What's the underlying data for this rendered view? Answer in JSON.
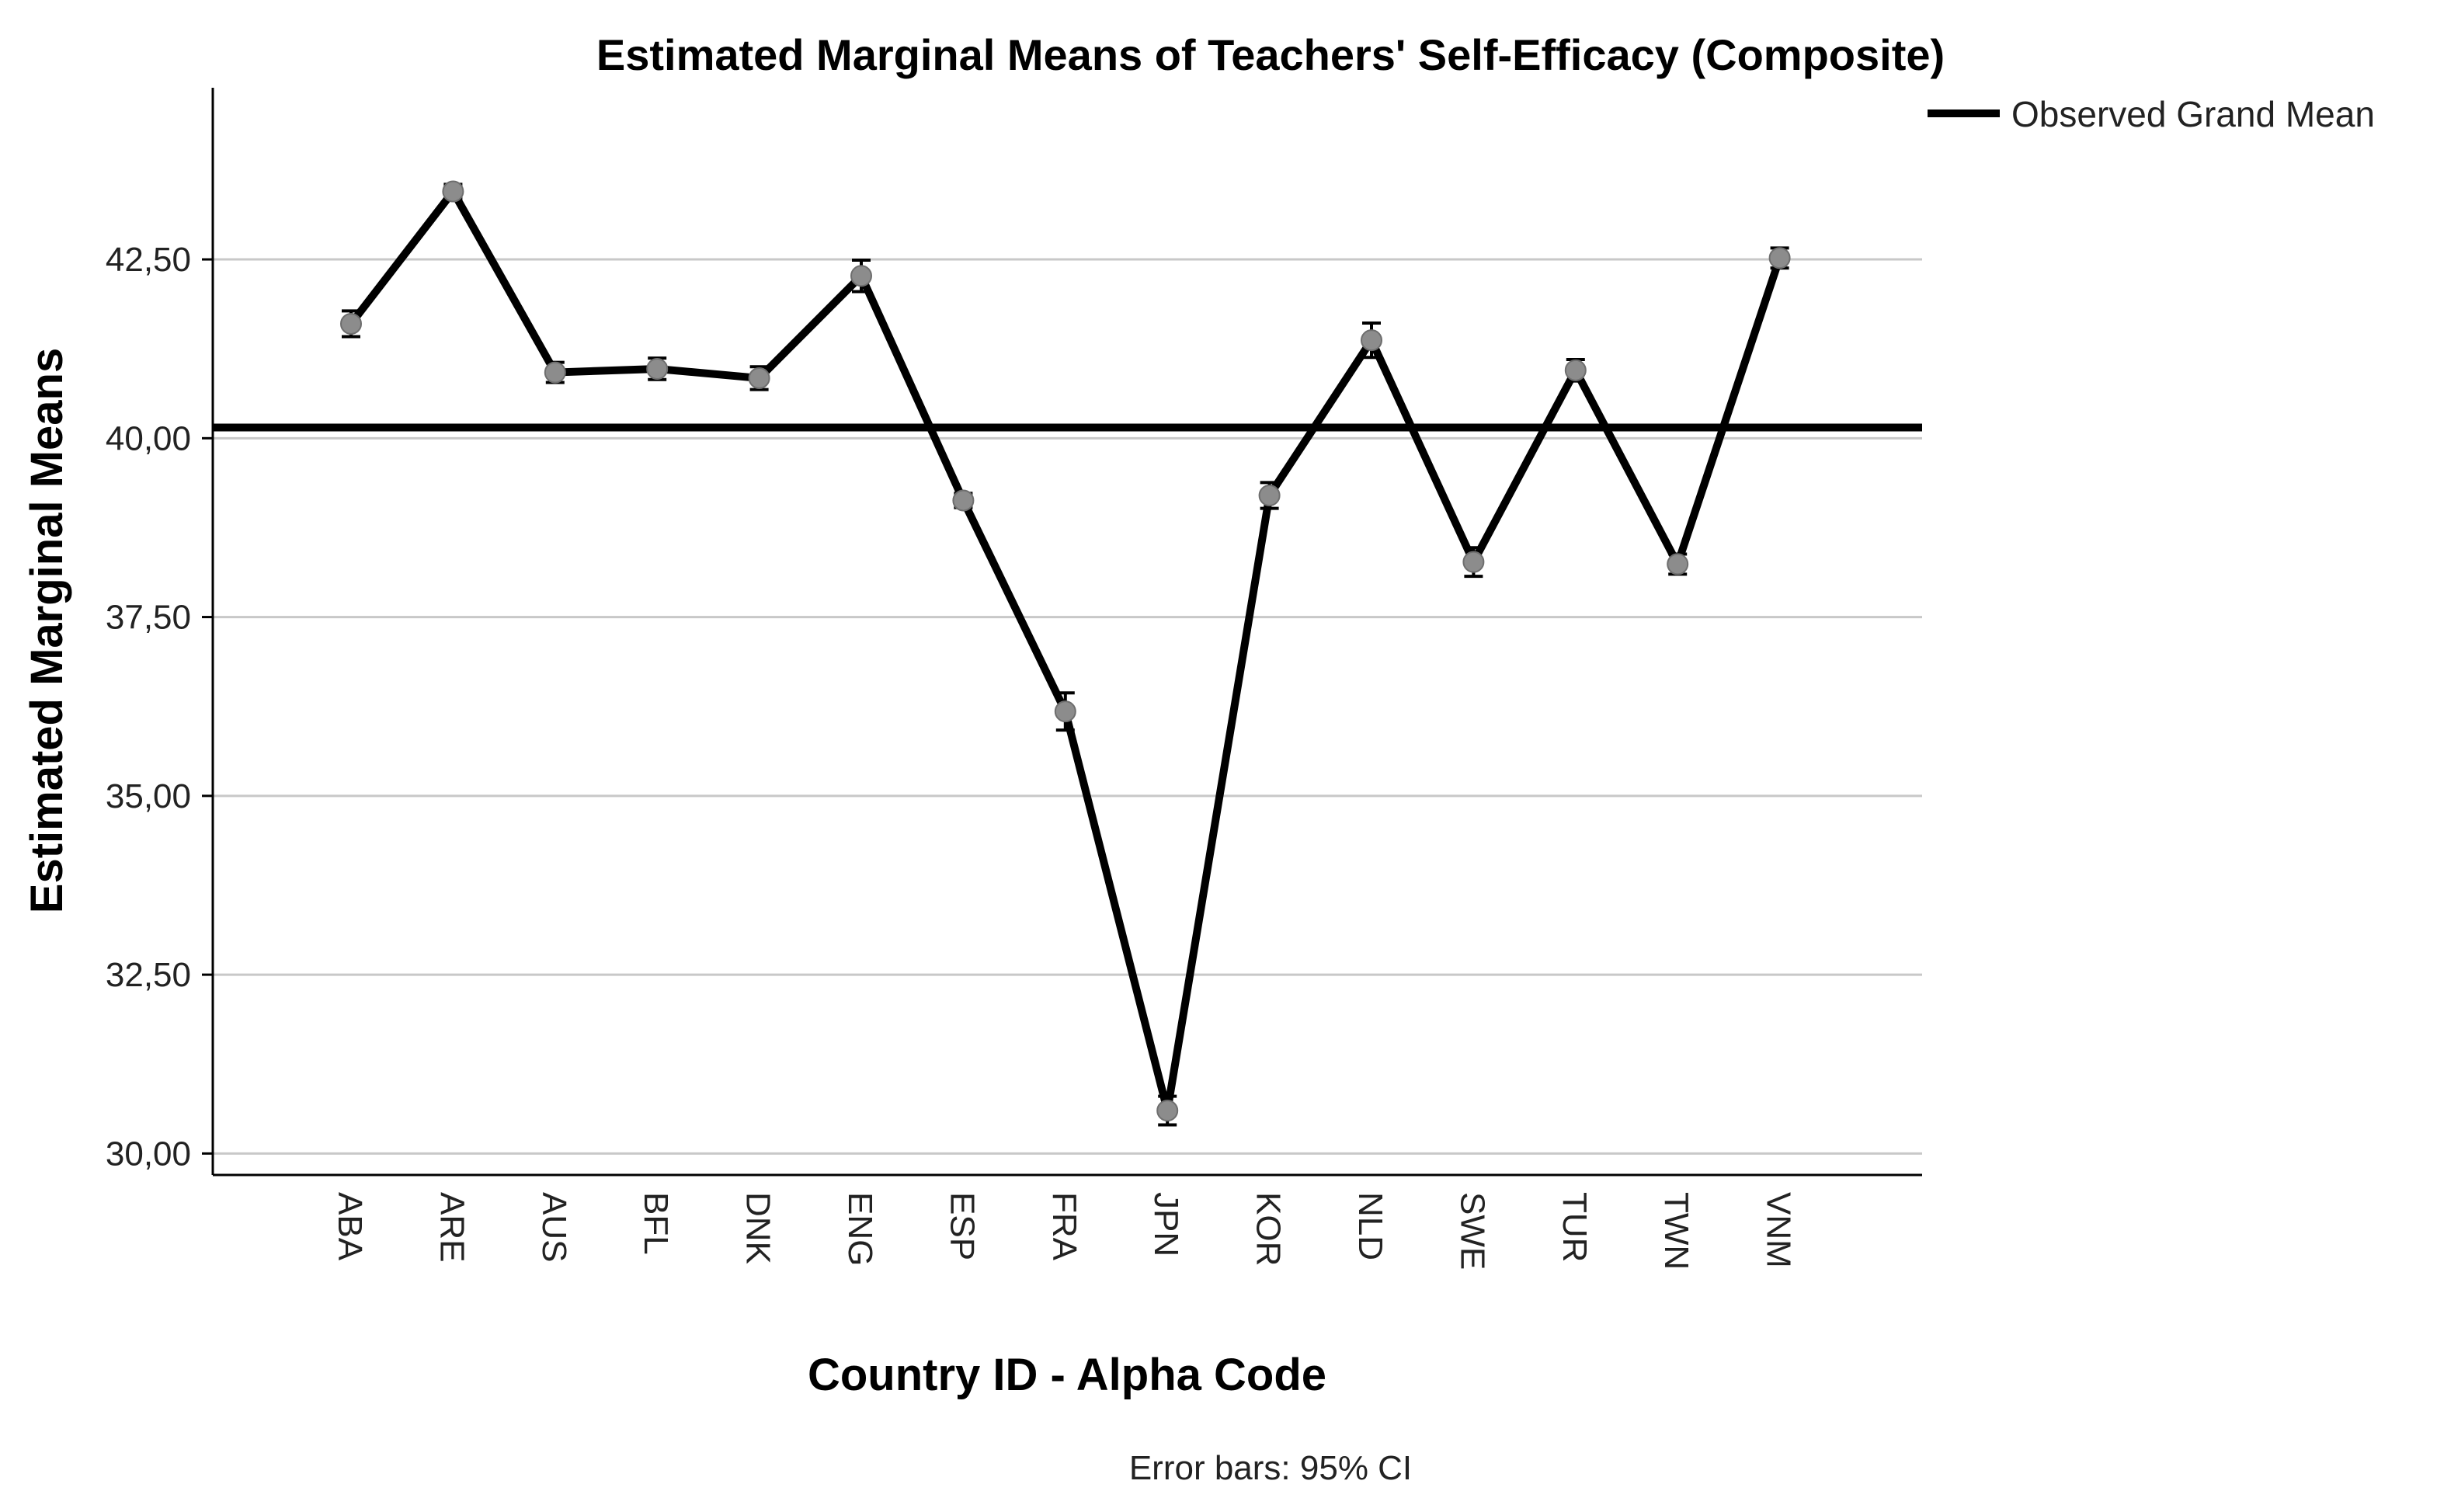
{
  "chart_data": {
    "type": "line",
    "title": "Estimated Marginal Means of Teachers' Self-Efficacy (Composite)",
    "xlabel": "Country ID - Alpha Code",
    "ylabel": "Estimated Marginal Means",
    "footnote": "Error bars: 95% CI",
    "categories": [
      "ABA",
      "ARE",
      "AUS",
      "BFL",
      "DNK",
      "ENG",
      "ESP",
      "FRA",
      "JPN",
      "KOR",
      "NLD",
      "SWE",
      "TUR",
      "TWN",
      "VNM"
    ],
    "series": [
      {
        "values": [
          41.6,
          43.45,
          40.92,
          40.97,
          40.84,
          42.27,
          39.13,
          36.18,
          30.6,
          39.2,
          41.37,
          38.27,
          40.95,
          38.24,
          42.52
        ],
        "ci_lower": [
          41.42,
          43.35,
          40.78,
          40.82,
          40.68,
          42.05,
          39.03,
          35.92,
          30.4,
          39.02,
          41.13,
          38.07,
          40.8,
          38.1,
          42.38
        ],
        "ci_upper": [
          41.78,
          43.55,
          41.06,
          41.12,
          41.0,
          42.49,
          39.23,
          36.44,
          30.8,
          39.38,
          41.61,
          38.47,
          41.1,
          38.38,
          42.66
        ]
      }
    ],
    "reference_line": {
      "name": "Observed Grand Mean",
      "value": 40.15
    },
    "y_ticks": [
      "30,00",
      "32,50",
      "35,00",
      "37,50",
      "40,00",
      "42,50"
    ],
    "y_tick_values": [
      30,
      32.5,
      35,
      37.5,
      40,
      42.5
    ],
    "ylim": [
      29.7,
      44.9
    ],
    "grid": true,
    "legend_position": "top-right",
    "colors": {
      "line": "#000000",
      "marker": "#8c8c8c",
      "grid": "#c8c8c8",
      "axis": "#000000"
    }
  }
}
